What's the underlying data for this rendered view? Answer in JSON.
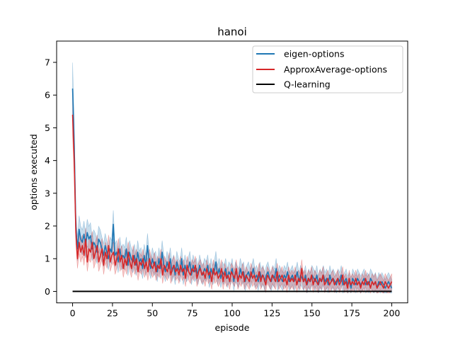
{
  "chart_data": {
    "type": "line",
    "title": "hanoi",
    "xlabel": "episode",
    "ylabel": "options executed",
    "xlim": [
      -10,
      210
    ],
    "ylim": [
      -0.35,
      7.65
    ],
    "xticks": [
      "0",
      "25",
      "50",
      "75",
      "100",
      "125",
      "150",
      "175",
      "200"
    ],
    "yticks": [
      "0",
      "1",
      "2",
      "3",
      "4",
      "5",
      "6",
      "7"
    ],
    "legend_position": "upper-right",
    "grid": false,
    "episode_count": 200,
    "series": [
      {
        "name": "eigen-options",
        "color": "#1f77b4",
        "band": 0.25,
        "values": [
          6.2,
          4.5,
          2.0,
          1.3,
          1.9,
          1.6,
          1.5,
          1.75,
          1.4,
          1.8,
          1.6,
          1.7,
          1.3,
          1.5,
          1.4,
          1.2,
          1.6,
          1.5,
          1.3,
          1.1,
          1.4,
          1.2,
          1.0,
          1.3,
          1.2,
          2.05,
          1.1,
          1.2,
          0.9,
          1.3,
          1.0,
          1.1,
          1.0,
          1.3,
          0.8,
          1.2,
          1.0,
          0.9,
          1.1,
          0.8,
          1.2,
          0.9,
          1.0,
          0.7,
          1.1,
          0.8,
          1.4,
          0.9,
          0.7,
          1.0,
          0.8,
          0.9,
          0.6,
          1.0,
          0.7,
          1.2,
          0.8,
          0.6,
          0.9,
          0.7,
          1.0,
          0.6,
          0.8,
          0.5,
          0.9,
          0.7,
          0.6,
          1.0,
          0.5,
          0.8,
          0.6,
          0.7,
          0.9,
          0.5,
          0.8,
          0.6,
          0.7,
          0.5,
          0.8,
          0.6,
          0.5,
          0.7,
          0.6,
          0.8,
          0.4,
          0.7,
          0.5,
          0.6,
          0.9,
          0.5,
          0.7,
          0.4,
          0.6,
          0.5,
          0.7,
          0.4,
          0.6,
          0.5,
          0.7,
          0.3,
          0.6,
          0.5,
          0.4,
          0.7,
          0.5,
          0.6,
          0.3,
          0.5,
          0.6,
          0.4,
          0.5,
          0.7,
          0.4,
          0.5,
          0.3,
          0.6,
          0.4,
          0.5,
          0.3,
          0.5,
          0.6,
          0.4,
          0.3,
          0.5,
          0.4,
          0.7,
          0.3,
          0.5,
          0.4,
          0.3,
          0.5,
          0.4,
          0.6,
          0.3,
          0.4,
          0.5,
          0.3,
          0.4,
          0.6,
          0.3,
          0.5,
          0.4,
          0.3,
          0.5,
          0.2,
          0.4,
          0.3,
          0.5,
          0.4,
          0.3,
          0.5,
          0.2,
          0.4,
          0.3,
          0.5,
          0.3,
          0.4,
          0.2,
          0.5,
          0.3,
          0.4,
          0.3,
          0.2,
          0.4,
          0.3,
          0.5,
          0.2,
          0.3,
          0.4,
          0.2,
          0.3,
          0.1,
          0.4,
          0.3,
          0.2,
          0.4,
          0.3,
          0.2,
          0.3,
          0.4,
          0.2,
          0.3,
          0.2,
          0.4,
          0.3,
          0.2,
          0.3,
          0.1,
          0.3,
          0.2,
          0.3,
          0.2,
          0.1,
          0.2,
          0.3,
          0.2,
          0.1
        ]
      },
      {
        "name": "ApproxAverage-options",
        "color": "#d62728",
        "band": 0.22,
        "values": [
          5.4,
          4.0,
          1.8,
          1.0,
          1.5,
          1.2,
          1.4,
          1.1,
          1.6,
          0.9,
          1.3,
          1.2,
          1.5,
          1.0,
          1.2,
          1.4,
          0.9,
          1.1,
          1.3,
          0.8,
          1.2,
          1.0,
          1.4,
          0.9,
          1.1,
          1.2,
          0.8,
          1.0,
          1.3,
          0.9,
          1.1,
          0.7,
          1.0,
          0.8,
          1.2,
          0.9,
          0.7,
          1.1,
          0.8,
          1.0,
          0.6,
          0.9,
          0.8,
          1.0,
          0.7,
          0.9,
          0.6,
          1.0,
          0.8,
          0.7,
          0.9,
          0.6,
          0.8,
          0.7,
          1.0,
          0.5,
          0.8,
          0.7,
          0.6,
          0.9,
          0.5,
          0.7,
          0.8,
          0.6,
          0.7,
          0.5,
          0.8,
          0.6,
          0.7,
          0.4,
          0.8,
          0.6,
          0.5,
          0.7,
          0.6,
          0.8,
          0.4,
          0.6,
          0.7,
          0.5,
          0.6,
          0.4,
          0.7,
          0.5,
          0.6,
          0.3,
          0.7,
          0.5,
          0.6,
          0.4,
          0.5,
          0.7,
          0.3,
          0.6,
          0.4,
          0.5,
          0.3,
          0.6,
          0.5,
          0.4,
          0.7,
          0.3,
          0.5,
          0.4,
          0.6,
          0.3,
          0.5,
          0.4,
          0.3,
          0.6,
          0.4,
          0.5,
          0.3,
          0.4,
          0.6,
          0.3,
          0.5,
          0.4,
          0.2,
          0.5,
          0.4,
          0.3,
          0.5,
          0.4,
          0.3,
          0.6,
          0.3,
          0.4,
          0.5,
          0.3,
          0.4,
          0.2,
          0.5,
          0.3,
          0.4,
          0.3,
          0.5,
          0.2,
          0.4,
          0.3,
          0.7,
          0.3,
          0.4,
          0.2,
          0.4,
          0.3,
          0.5,
          0.2,
          0.4,
          0.3,
          0.2,
          0.4,
          0.3,
          0.5,
          0.2,
          0.3,
          0.4,
          0.2,
          0.3,
          0.4,
          0.2,
          0.3,
          0.4,
          0.2,
          0.3,
          0.5,
          0.2,
          0.3,
          0.1,
          0.4,
          0.2,
          0.3,
          0.2,
          0.4,
          0.2,
          0.3,
          0.1,
          0.3,
          0.2,
          0.4,
          0.2,
          0.3,
          0.1,
          0.3,
          0.2,
          0.3,
          0.1,
          0.2,
          0.3,
          0.2,
          0.1,
          0.3,
          0.2,
          0.1,
          0.2,
          0.3
        ]
      },
      {
        "name": "Q-learning",
        "color": "#000000",
        "band": 0,
        "constant": 0
      }
    ]
  }
}
